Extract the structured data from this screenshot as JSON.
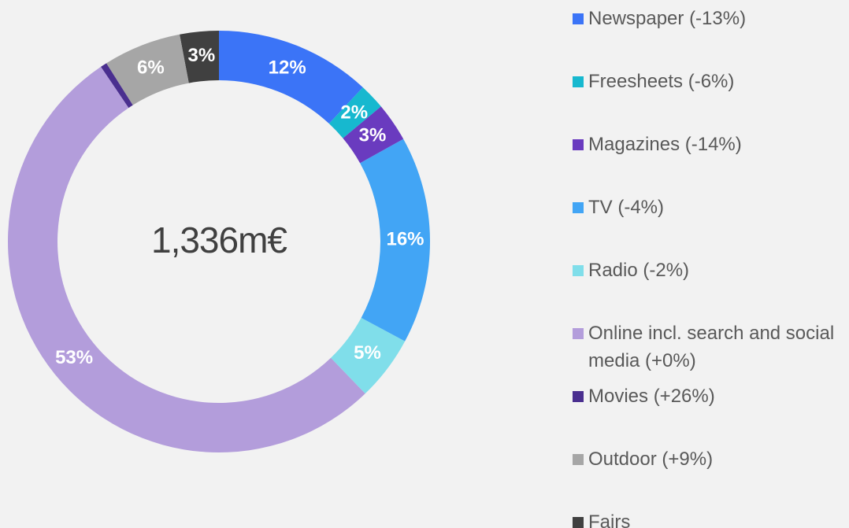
{
  "chart_data": {
    "type": "donut",
    "center_label": "1,336m€",
    "series": [
      {
        "name": "Newspaper (-13%)",
        "color": "#3b74f7",
        "value": 12,
        "value_label": "12%"
      },
      {
        "name": "Freesheets (-6%)",
        "color": "#17b8cf",
        "value": 2,
        "value_label": "2%"
      },
      {
        "name": "Magazines (-14%)",
        "color": "#6a3bbf",
        "value": 3,
        "value_label": "3%"
      },
      {
        "name": "TV (-4%)",
        "color": "#42a5f5",
        "value": 16,
        "value_label": "16%"
      },
      {
        "name": "Radio (-2%)",
        "color": "#80deea",
        "value": 5,
        "value_label": "5%"
      },
      {
        "name": "Online incl. search and social media (+0%)",
        "color": "#b39ddb",
        "value": 53,
        "value_label": "53%"
      },
      {
        "name": "Movies (+26%)",
        "color": "#4a2f8f",
        "value": 0.5,
        "value_label": null
      },
      {
        "name": "Outdoor (+9%)",
        "color": "#a6a6a6",
        "value": 6,
        "value_label": "6%"
      },
      {
        "name": "Fairs",
        "color": "#404040",
        "value": 3,
        "value_label": "3%"
      }
    ]
  }
}
